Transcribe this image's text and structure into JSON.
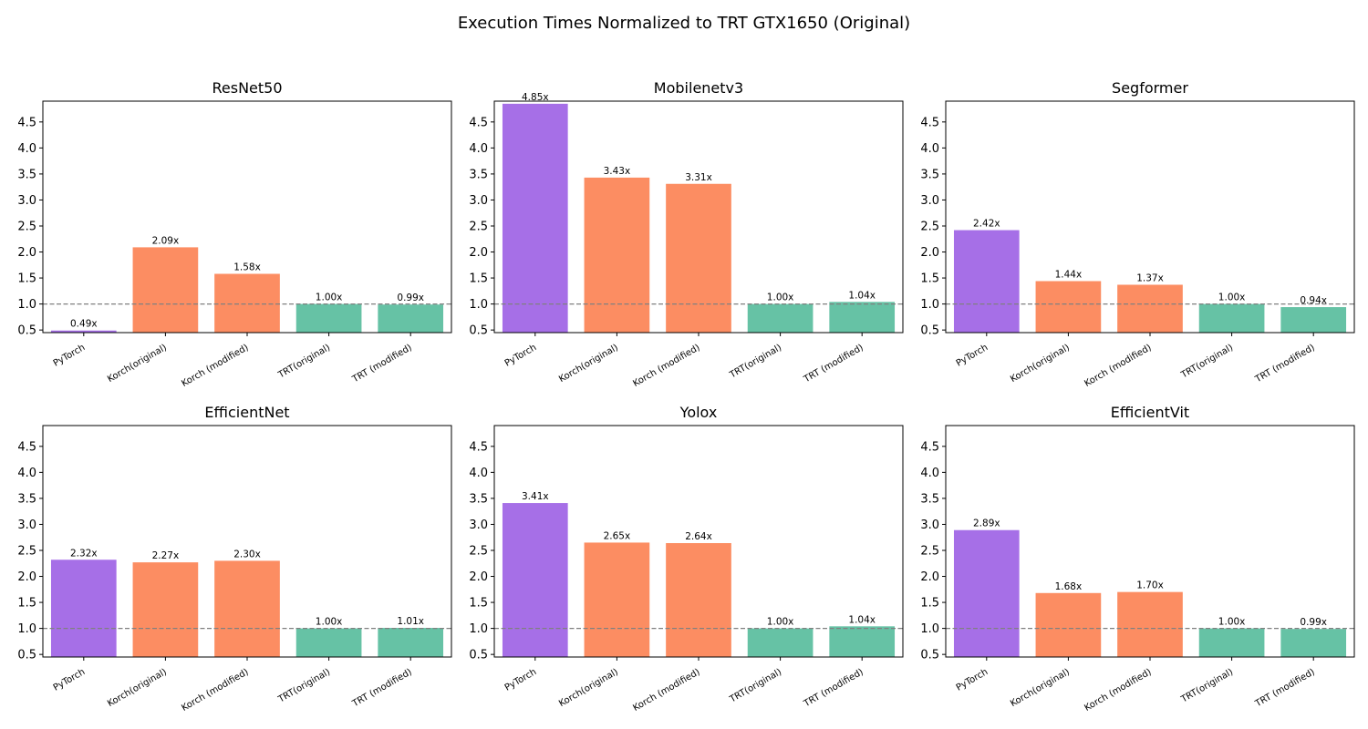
{
  "chart_data": {
    "type": "bar",
    "title": "Execution Times Normalized to TRT GTX1650 (Original)",
    "categories": [
      "PyTorch",
      "Korch(original)",
      "Korch (modified)",
      "TRT(original)",
      "TRT (modified)"
    ],
    "category_colors": [
      "#a66fe7",
      "#fc8d62",
      "#fc8d62",
      "#66c2a5",
      "#66c2a5"
    ],
    "ylim": [
      0.45,
      4.9
    ],
    "yticks": [
      0.5,
      1.0,
      1.5,
      2.0,
      2.5,
      3.0,
      3.5,
      4.0,
      4.5
    ],
    "ytick_labels": [
      "0.5",
      "1.0",
      "1.5",
      "2.0",
      "2.5",
      "3.0",
      "3.5",
      "4.0",
      "4.5"
    ],
    "reference_line": {
      "y": 1.0,
      "style": "dashed",
      "color": "#808080"
    },
    "grid": false,
    "panels": [
      {
        "title": "ResNet50",
        "values": [
          0.49,
          2.09,
          1.58,
          1.0,
          0.99
        ],
        "labels": [
          "0.49x",
          "2.09x",
          "1.58x",
          "1.00x",
          "0.99x"
        ]
      },
      {
        "title": "Mobilenetv3",
        "values": [
          4.85,
          3.43,
          3.31,
          1.0,
          1.04
        ],
        "labels": [
          "4.85x",
          "3.43x",
          "3.31x",
          "1.00x",
          "1.04x"
        ]
      },
      {
        "title": "Segformer",
        "values": [
          2.42,
          1.44,
          1.37,
          1.0,
          0.94
        ],
        "labels": [
          "2.42x",
          "1.44x",
          "1.37x",
          "1.00x",
          "0.94x"
        ]
      },
      {
        "title": "EfficientNet",
        "values": [
          2.32,
          2.27,
          2.3,
          1.0,
          1.01
        ],
        "labels": [
          "2.32x",
          "2.27x",
          "2.30x",
          "1.00x",
          "1.01x"
        ]
      },
      {
        "title": "Yolox",
        "values": [
          3.41,
          2.65,
          2.64,
          1.0,
          1.04
        ],
        "labels": [
          "3.41x",
          "2.65x",
          "2.64x",
          "1.00x",
          "1.04x"
        ]
      },
      {
        "title": "EfficientVit",
        "values": [
          2.89,
          1.68,
          1.7,
          1.0,
          0.99
        ],
        "labels": [
          "2.89x",
          "1.68x",
          "1.70x",
          "1.00x",
          "0.99x"
        ]
      }
    ]
  }
}
